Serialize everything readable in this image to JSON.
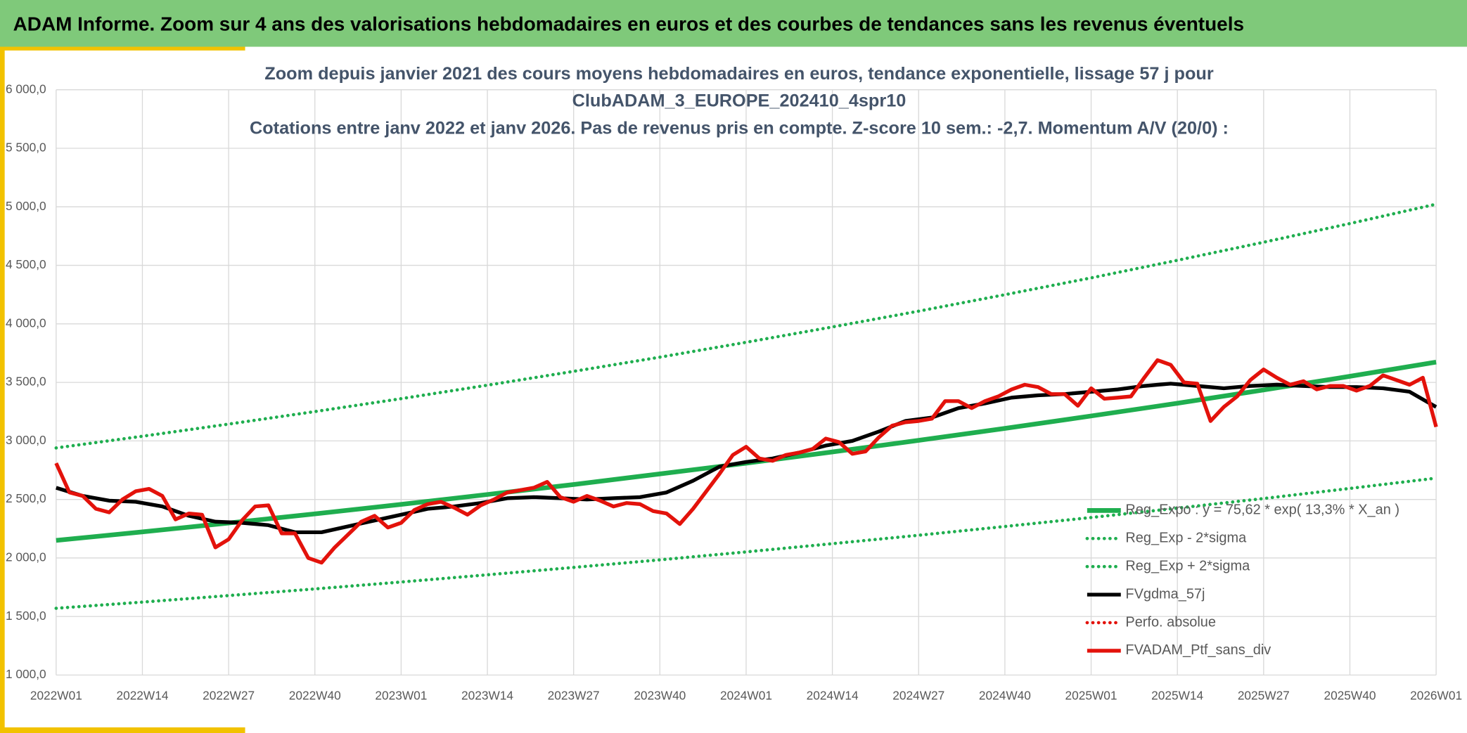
{
  "header": {
    "title": "ADAM Informe. Zoom sur 4 ans des valorisations hebdomadaires en euros et des courbes de tendances sans les revenus éventuels"
  },
  "chart_data": {
    "type": "line",
    "title_lines": [
      "Zoom depuis janvier 2021 des cours moyens hebdomadaires en euros, tendance exponentielle, lissage 57 j pour",
      "ClubADAM_3_EUROPE_202410_4spr10",
      "Cotations entre janv 2022 et janv 2026. Pas de revenus pris en compte. Z-score 10 sem.: -2,7. Momentum A/V (20/0) :"
    ],
    "xlim": [
      0,
      208
    ],
    "xticks": [
      {
        "value": 0,
        "label": "2022W01"
      },
      {
        "value": 13,
        "label": "2022W14"
      },
      {
        "value": 26,
        "label": "2022W27"
      },
      {
        "value": 39,
        "label": "2022W40"
      },
      {
        "value": 52,
        "label": "2023W01"
      },
      {
        "value": 65,
        "label": "2023W14"
      },
      {
        "value": 78,
        "label": "2023W27"
      },
      {
        "value": 91,
        "label": "2023W40"
      },
      {
        "value": 104,
        "label": "2024W01"
      },
      {
        "value": 117,
        "label": "2024W14"
      },
      {
        "value": 130,
        "label": "2024W27"
      },
      {
        "value": 143,
        "label": "2024W40"
      },
      {
        "value": 156,
        "label": "2025W01"
      },
      {
        "value": 169,
        "label": "2025W14"
      },
      {
        "value": 182,
        "label": "2025W27"
      },
      {
        "value": 195,
        "label": "2025W40"
      },
      {
        "value": 208,
        "label": "2026W01"
      }
    ],
    "ylim": [
      1000,
      6000
    ],
    "yticks": [
      {
        "value": 1000,
        "label": "1 000,0"
      },
      {
        "value": 1500,
        "label": "1 500,0"
      },
      {
        "value": 2000,
        "label": "2 000,0"
      },
      {
        "value": 2500,
        "label": "2 500,0"
      },
      {
        "value": 3000,
        "label": "3 000,0"
      },
      {
        "value": 3500,
        "label": "3 500,0"
      },
      {
        "value": 4000,
        "label": "4 000,0"
      },
      {
        "value": 4500,
        "label": "4 500,0"
      },
      {
        "value": 5000,
        "label": "5 000,0"
      },
      {
        "value": 5500,
        "label": "5 500,0"
      },
      {
        "value": 6000,
        "label": "6 000,0"
      }
    ],
    "grid": true,
    "series": [
      {
        "name": "Reg_Expo : y = 75,62 * exp( 13,3% *  X_an )",
        "color": "#1fae4f",
        "style": "solid",
        "x": [
          0,
          13,
          26,
          39,
          52,
          65,
          78,
          91,
          104,
          117,
          130,
          143,
          156,
          169,
          182,
          195,
          208
        ],
        "values": [
          2150,
          2223,
          2299,
          2377,
          2458,
          2542,
          2628,
          2718,
          2810,
          2906,
          3005,
          3107,
          3213,
          3322,
          3435,
          3552,
          3673
        ]
      },
      {
        "name": "Reg_Exp - 2*sigma",
        "color": "#1fae4f",
        "style": "dotted",
        "x": [
          0,
          13,
          26,
          39,
          52,
          65,
          78,
          91,
          104,
          117,
          130,
          143,
          156,
          169,
          182,
          195,
          208
        ],
        "values": [
          1570,
          1623,
          1679,
          1736,
          1795,
          1856,
          1919,
          1984,
          2052,
          2122,
          2194,
          2269,
          2346,
          2426,
          2508,
          2594,
          2682
        ]
      },
      {
        "name": "Reg_Exp + 2*sigma",
        "color": "#1fae4f",
        "style": "dotted",
        "x": [
          0,
          13,
          26,
          39,
          52,
          65,
          78,
          91,
          104,
          117,
          130,
          143,
          156,
          169,
          182,
          195,
          208
        ],
        "values": [
          2940,
          3040,
          3144,
          3251,
          3361,
          3476,
          3594,
          3716,
          3843,
          3974,
          4109,
          4249,
          4393,
          4543,
          4697,
          4857,
          5022
        ]
      },
      {
        "name": "FVgdma_57j",
        "color": "#000000",
        "style": "solid",
        "x": [
          0,
          4,
          8,
          12,
          16,
          20,
          24,
          28,
          32,
          36,
          40,
          44,
          48,
          52,
          56,
          60,
          64,
          68,
          72,
          76,
          80,
          84,
          88,
          92,
          96,
          100,
          104,
          108,
          112,
          116,
          120,
          124,
          128,
          132,
          136,
          140,
          144,
          148,
          152,
          156,
          160,
          164,
          168,
          172,
          176,
          180,
          184,
          188,
          192,
          196,
          200,
          204,
          208
        ],
        "values": [
          2600,
          2530,
          2490,
          2480,
          2440,
          2360,
          2310,
          2300,
          2280,
          2220,
          2220,
          2270,
          2320,
          2370,
          2420,
          2440,
          2470,
          2510,
          2520,
          2510,
          2500,
          2510,
          2520,
          2560,
          2660,
          2780,
          2820,
          2850,
          2900,
          2960,
          3000,
          3080,
          3170,
          3200,
          3280,
          3320,
          3370,
          3390,
          3400,
          3420,
          3440,
          3470,
          3490,
          3470,
          3450,
          3470,
          3480,
          3470,
          3460,
          3460,
          3450,
          3420,
          3290
        ]
      },
      {
        "name": "Perfo. absolue",
        "color": "#e3120b",
        "style": "dotted",
        "x": [],
        "values": []
      },
      {
        "name": "FVADAM_Ptf_sans_div",
        "color": "#e3120b",
        "style": "solid",
        "x": [
          0,
          2,
          4,
          6,
          8,
          10,
          12,
          14,
          16,
          18,
          20,
          22,
          24,
          26,
          28,
          30,
          32,
          34,
          36,
          38,
          40,
          42,
          44,
          46,
          48,
          50,
          52,
          54,
          56,
          58,
          60,
          62,
          64,
          66,
          68,
          70,
          72,
          74,
          76,
          78,
          80,
          82,
          84,
          86,
          88,
          90,
          92,
          94,
          96,
          98,
          100,
          102,
          104,
          106,
          108,
          110,
          112,
          114,
          116,
          118,
          120,
          122,
          124,
          126,
          128,
          130,
          132,
          134,
          136,
          138,
          140,
          142,
          144,
          146,
          148,
          150,
          152,
          154,
          156,
          158,
          160,
          162,
          164,
          166,
          168,
          170,
          172,
          174,
          176,
          178,
          180,
          182,
          184,
          186,
          188,
          190,
          192,
          194,
          196,
          198,
          200,
          202,
          204,
          206,
          208
        ],
        "values": [
          2810,
          2560,
          2530,
          2420,
          2390,
          2500,
          2570,
          2590,
          2530,
          2330,
          2380,
          2370,
          2090,
          2160,
          2320,
          2440,
          2450,
          2210,
          2210,
          2000,
          1960,
          2090,
          2200,
          2310,
          2360,
          2260,
          2300,
          2410,
          2460,
          2480,
          2430,
          2370,
          2450,
          2500,
          2560,
          2580,
          2600,
          2650,
          2520,
          2480,
          2530,
          2490,
          2440,
          2470,
          2460,
          2400,
          2380,
          2290,
          2420,
          2570,
          2720,
          2880,
          2950,
          2850,
          2830,
          2880,
          2900,
          2930,
          3020,
          2990,
          2890,
          2910,
          3030,
          3130,
          3160,
          3170,
          3190,
          3340,
          3340,
          3280,
          3340,
          3380,
          3440,
          3480,
          3460,
          3400,
          3400,
          3300,
          3450,
          3360,
          3370,
          3380,
          3540,
          3690,
          3650,
          3500,
          3490,
          3170,
          3290,
          3380,
          3520,
          3610,
          3540,
          3480,
          3510,
          3440,
          3470,
          3470,
          3430,
          3470,
          3560,
          3520,
          3480,
          3540,
          3120
        ]
      }
    ]
  }
}
